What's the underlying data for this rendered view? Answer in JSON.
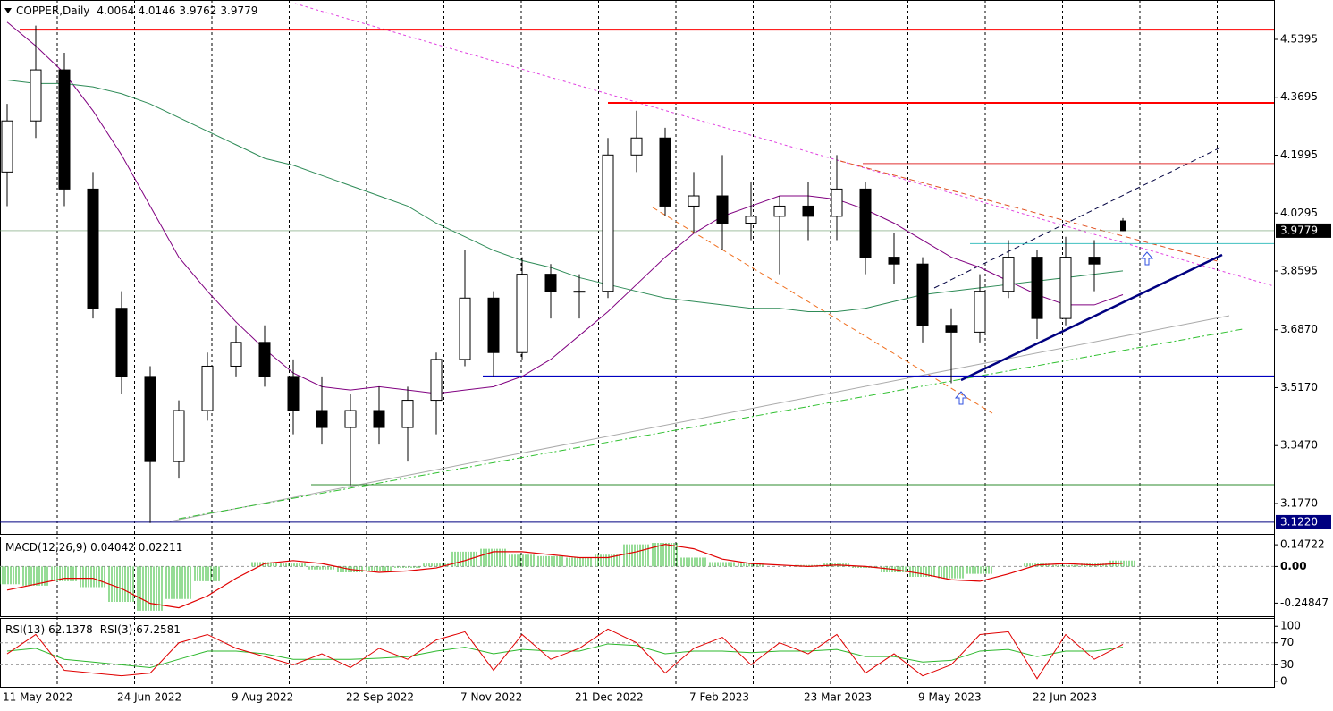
{
  "chart_data": [
    {
      "type": "candlestick",
      "title": "COPPER,Daily",
      "categories": [
        "11 May 2022",
        null,
        null,
        null,
        "24 Jun 2022",
        null,
        null,
        null,
        "9 Aug 2022",
        null,
        null,
        null,
        "22 Sep 2022",
        null,
        null,
        null,
        "7 Nov 2022",
        null,
        null,
        null,
        "21 Dec 2022",
        null,
        null,
        null,
        "7 Feb 2023",
        null,
        null,
        null,
        "23 Mar 2023",
        null,
        null,
        null,
        "9 May 2023",
        null,
        null,
        null,
        "22 Jun 2023",
        null,
        null,
        null
      ],
      "open": [
        4.15,
        4.3,
        4.45,
        4.1,
        3.75,
        3.55,
        3.3,
        3.45,
        3.58,
        3.65,
        3.55,
        3.45,
        3.4,
        3.45,
        3.4,
        3.48,
        3.6,
        3.78,
        3.62,
        3.85,
        3.8,
        3.8,
        4.2,
        4.25,
        4.05,
        4.08,
        4.0,
        4.02,
        4.05,
        4.02,
        4.1,
        3.9,
        3.88,
        3.7,
        3.68,
        3.8,
        3.9,
        3.72,
        3.9,
        4.0064
      ],
      "high": [
        4.35,
        4.58,
        4.5,
        4.15,
        3.8,
        3.58,
        3.48,
        3.62,
        3.7,
        3.7,
        3.6,
        3.55,
        3.5,
        3.52,
        3.52,
        3.62,
        3.92,
        3.8,
        3.9,
        3.88,
        3.85,
        4.25,
        4.33,
        4.28,
        4.15,
        4.2,
        4.12,
        4.08,
        4.12,
        4.2,
        4.12,
        3.97,
        3.9,
        3.75,
        3.85,
        3.95,
        3.92,
        3.96,
        3.95,
        4.0146
      ],
      "low": [
        4.05,
        4.25,
        4.05,
        3.72,
        3.5,
        3.12,
        3.25,
        3.42,
        3.55,
        3.52,
        3.38,
        3.35,
        3.23,
        3.35,
        3.3,
        3.38,
        3.58,
        3.55,
        3.6,
        3.72,
        3.72,
        3.78,
        4.15,
        4.02,
        3.97,
        3.92,
        3.95,
        3.85,
        3.95,
        3.95,
        3.85,
        3.82,
        3.65,
        3.53,
        3.65,
        3.78,
        3.66,
        3.7,
        3.8,
        3.9762
      ],
      "close": [
        4.3,
        4.45,
        4.1,
        3.75,
        3.55,
        3.3,
        3.45,
        3.58,
        3.65,
        3.55,
        3.45,
        3.4,
        3.45,
        3.4,
        3.48,
        3.6,
        3.78,
        3.62,
        3.85,
        3.8,
        3.8,
        4.2,
        4.25,
        4.05,
        4.08,
        4.0,
        4.02,
        4.05,
        4.02,
        4.1,
        3.9,
        3.88,
        3.7,
        3.68,
        3.8,
        3.9,
        3.72,
        3.9,
        3.88,
        3.9779
      ],
      "lines": [
        {
          "color": "#800080",
          "values": [
            4.59,
            4.52,
            4.44,
            4.33,
            4.2,
            4.05,
            3.9,
            3.8,
            3.71,
            3.63,
            3.56,
            3.52,
            3.51,
            3.52,
            3.51,
            3.5,
            3.51,
            3.52,
            3.55,
            3.6,
            3.67,
            3.74,
            3.82,
            3.9,
            3.97,
            4.02,
            4.05,
            4.08,
            4.08,
            4.07,
            4.04,
            4.0,
            3.95,
            3.9,
            3.87,
            3.83,
            3.79,
            3.76,
            3.76,
            3.79
          ]
        },
        {
          "color": "#2e8b57",
          "values": [
            4.42,
            4.41,
            4.41,
            4.4,
            4.38,
            4.35,
            4.31,
            4.27,
            4.23,
            4.19,
            4.17,
            4.14,
            4.11,
            4.08,
            4.05,
            4.0,
            3.96,
            3.92,
            3.89,
            3.87,
            3.84,
            3.82,
            3.8,
            3.78,
            3.77,
            3.76,
            3.75,
            3.75,
            3.74,
            3.74,
            3.75,
            3.77,
            3.79,
            3.8,
            3.81,
            3.82,
            3.83,
            3.84,
            3.85,
            3.86
          ]
        }
      ],
      "levels": [
        {
          "value": 4.568,
          "color": "#ff0000"
        },
        {
          "value": 4.353,
          "color": "#ff0000"
        },
        {
          "value": 4.175,
          "color": "#e03030"
        },
        {
          "value": 3.55,
          "color": "#0000c0"
        },
        {
          "value": 3.232,
          "color": "#2e8b2e"
        },
        {
          "value": 3.94,
          "color": "#40c0c0"
        },
        {
          "value": 3.122,
          "color": "#000080"
        }
      ],
      "low_label": {
        "value": 3.122,
        "label": "3.1220"
      },
      "ylim": [
        3.0877,
        4.655
      ],
      "yticks": [
        4.5395,
        4.3695,
        4.1995,
        4.0295,
        3.8595,
        {
          "value": 3.687,
          "label": "3.6870"
        },
        {
          "value": 3.517,
          "label": "3.5170"
        },
        {
          "value": 3.347,
          "label": "3.3470"
        },
        {
          "value": 3.177,
          "label": "3.1770"
        }
      ]
    },
    {
      "type": "macd",
      "title": "MACD(12,26,9)",
      "color": "#2db82d",
      "signal_color": "#e00000",
      "values": [
        -0.12,
        -0.13,
        -0.1,
        -0.14,
        -0.24,
        -0.3,
        -0.22,
        -0.1,
        0.0,
        0.03,
        0.02,
        -0.02,
        -0.04,
        -0.03,
        -0.01,
        0.02,
        0.1,
        0.12,
        0.08,
        0.07,
        0.06,
        0.08,
        0.15,
        0.16,
        0.06,
        0.03,
        0.02,
        0.0,
        0.01,
        0.02,
        -0.01,
        -0.04,
        -0.07,
        -0.08,
        -0.05,
        0.0,
        0.02,
        0.01,
        0.02,
        0.04042
      ],
      "signal": [
        -0.16,
        -0.12,
        -0.08,
        -0.08,
        -0.15,
        -0.25,
        -0.28,
        -0.2,
        -0.08,
        0.02,
        0.04,
        0.02,
        -0.02,
        -0.04,
        -0.03,
        -0.01,
        0.04,
        0.1,
        0.1,
        0.08,
        0.06,
        0.06,
        0.1,
        0.15,
        0.12,
        0.05,
        0.02,
        0.01,
        0.0,
        0.01,
        0.0,
        -0.02,
        -0.05,
        -0.09,
        -0.1,
        -0.05,
        0.01,
        0.02,
        0.01,
        0.02211
      ],
      "ylim": [
        -0.337,
        0.2025
      ],
      "yticks": [
        0.14722,
        {
          "value": 0,
          "label": "0.00"
        },
        -0.24847
      ]
    },
    {
      "type": "rsi",
      "series": [
        {
          "name": "RSI(13)",
          "color": "#2db82d",
          "values": [
            55,
            60,
            40,
            35,
            30,
            25,
            40,
            55,
            55,
            50,
            40,
            40,
            40,
            42,
            45,
            55,
            62,
            50,
            58,
            55,
            55,
            68,
            65,
            50,
            55,
            55,
            52,
            55,
            55,
            58,
            45,
            45,
            35,
            38,
            55,
            58,
            45,
            55,
            55,
            62.1378
          ]
        },
        {
          "name": "RSI(3)",
          "color": "#e00000",
          "values": [
            50,
            85,
            20,
            15,
            10,
            15,
            70,
            85,
            60,
            45,
            30,
            50,
            25,
            60,
            40,
            75,
            90,
            20,
            85,
            40,
            60,
            95,
            70,
            15,
            60,
            80,
            30,
            70,
            50,
            85,
            15,
            50,
            10,
            30,
            85,
            90,
            5,
            85,
            40,
            67.2581
          ]
        }
      ],
      "ylim": [
        -10,
        115
      ],
      "yticks": [
        100,
        70,
        30,
        0
      ]
    }
  ]
}
